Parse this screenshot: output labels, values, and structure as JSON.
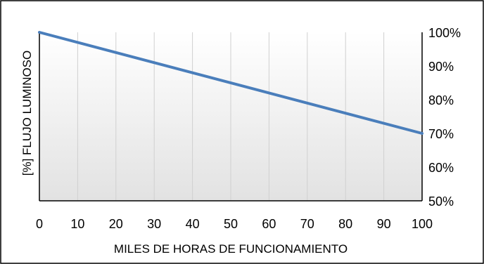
{
  "chart_data": {
    "type": "line",
    "title": "",
    "xlabel": "MILES DE HORAS DE FUNCIONAMIENTO",
    "ylabel": "[%] FLUJO LUMINOSO",
    "x_ticks": [
      "0",
      "10",
      "20",
      "30",
      "40",
      "50",
      "60",
      "70",
      "80",
      "90",
      "100"
    ],
    "y_ticks": [
      "50%",
      "60%",
      "70%",
      "80%",
      "90%",
      "100%"
    ],
    "xlim": [
      0,
      100
    ],
    "ylim": [
      50,
      100
    ],
    "y_axis_side": "right",
    "grid": "vertical",
    "series": [
      {
        "x": [
          0,
          100
        ],
        "values": [
          100,
          70
        ],
        "color": "#4a7ebb"
      }
    ]
  }
}
